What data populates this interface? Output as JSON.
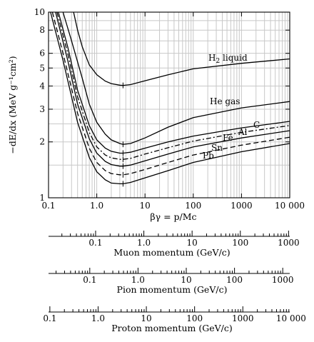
{
  "chart_data": {
    "type": "line",
    "xlabel": "βγ = p/Mc",
    "ylabel": "−dE/dx (MeV g⁻¹cm²)",
    "x_scale": "log",
    "y_scale": "log",
    "xlim": [
      0.1,
      10000
    ],
    "ylim": [
      1,
      10
    ],
    "grid": true,
    "x_ticks": [
      "0.1",
      "1.0",
      "10",
      "100",
      "1000",
      "10 000"
    ],
    "y_ticks": [
      "1",
      "2",
      "3",
      "4",
      "5",
      "6",
      "8",
      "10"
    ],
    "series": [
      {
        "name": "H2 liquid",
        "label": "H",
        "sub": "2",
        "label_rest": " liquid",
        "dash": "",
        "min_x": 3.5,
        "points": [
          [
            0.33,
            10.0
          ],
          [
            0.4,
            8.0
          ],
          [
            0.5,
            6.5
          ],
          [
            0.7,
            5.2
          ],
          [
            1.0,
            4.6
          ],
          [
            1.5,
            4.25
          ],
          [
            2.0,
            4.12
          ],
          [
            3.0,
            4.04
          ],
          [
            3.5,
            4.03
          ],
          [
            5.0,
            4.07
          ],
          [
            10,
            4.27
          ],
          [
            30,
            4.6
          ],
          [
            100,
            4.95
          ],
          [
            1000,
            5.3
          ],
          [
            10000,
            5.6
          ]
        ]
      },
      {
        "name": "He gas",
        "label": "He gas",
        "dash": "",
        "min_x": 3.5,
        "points": [
          [
            0.2,
            10.0
          ],
          [
            0.3,
            7.0
          ],
          [
            0.5,
            4.4
          ],
          [
            0.7,
            3.2
          ],
          [
            1.0,
            2.55
          ],
          [
            1.5,
            2.2
          ],
          [
            2.0,
            2.05
          ],
          [
            3.0,
            1.96
          ],
          [
            3.5,
            1.94
          ],
          [
            5.0,
            1.96
          ],
          [
            10,
            2.1
          ],
          [
            30,
            2.4
          ],
          [
            100,
            2.7
          ],
          [
            1000,
            3.05
          ],
          [
            10000,
            3.3
          ]
        ]
      },
      {
        "name": "C",
        "label": "C",
        "dash": "",
        "min_x": 3.5,
        "points": [
          [
            0.16,
            10.0
          ],
          [
            0.25,
            6.5
          ],
          [
            0.4,
            3.8
          ],
          [
            0.7,
            2.45
          ],
          [
            1.0,
            2.05
          ],
          [
            1.5,
            1.85
          ],
          [
            2.0,
            1.78
          ],
          [
            3.0,
            1.74
          ],
          [
            3.5,
            1.74
          ],
          [
            5.0,
            1.76
          ],
          [
            10,
            1.85
          ],
          [
            30,
            2.0
          ],
          [
            100,
            2.15
          ],
          [
            1000,
            2.38
          ],
          [
            10000,
            2.58
          ]
        ]
      },
      {
        "name": "Al",
        "label": "Al",
        "dash": "7 3 2 3",
        "min_x": 3.5,
        "points": [
          [
            0.15,
            10.0
          ],
          [
            0.25,
            6.0
          ],
          [
            0.4,
            3.5
          ],
          [
            0.7,
            2.25
          ],
          [
            1.0,
            1.88
          ],
          [
            1.5,
            1.7
          ],
          [
            2.0,
            1.64
          ],
          [
            3.0,
            1.61
          ],
          [
            3.5,
            1.61
          ],
          [
            5.0,
            1.63
          ],
          [
            10,
            1.72
          ],
          [
            30,
            1.86
          ],
          [
            100,
            2.02
          ],
          [
            1000,
            2.25
          ],
          [
            10000,
            2.45
          ]
        ]
      },
      {
        "name": "Fe",
        "label": "Fe",
        "dash": "",
        "min_x": 3.5,
        "points": [
          [
            0.14,
            10.0
          ],
          [
            0.25,
            5.5
          ],
          [
            0.4,
            3.2
          ],
          [
            0.7,
            2.08
          ],
          [
            1.0,
            1.74
          ],
          [
            1.5,
            1.57
          ],
          [
            2.0,
            1.51
          ],
          [
            3.0,
            1.48
          ],
          [
            3.5,
            1.48
          ],
          [
            5.0,
            1.5
          ],
          [
            10,
            1.58
          ],
          [
            30,
            1.72
          ],
          [
            100,
            1.88
          ],
          [
            1000,
            2.1
          ],
          [
            10000,
            2.3
          ]
        ]
      },
      {
        "name": "Sn",
        "label": "Sn",
        "dash": "7 4",
        "min_x": 3.5,
        "points": [
          [
            0.12,
            10.0
          ],
          [
            0.2,
            6.0
          ],
          [
            0.4,
            2.85
          ],
          [
            0.7,
            1.85
          ],
          [
            1.0,
            1.55
          ],
          [
            1.5,
            1.4
          ],
          [
            2.0,
            1.35
          ],
          [
            3.0,
            1.33
          ],
          [
            3.5,
            1.33
          ],
          [
            5.0,
            1.35
          ],
          [
            10,
            1.42
          ],
          [
            30,
            1.55
          ],
          [
            100,
            1.7
          ],
          [
            1000,
            1.92
          ],
          [
            10000,
            2.12
          ]
        ]
      },
      {
        "name": "Pb",
        "label": "Pb",
        "dash": "",
        "min_x": 3.5,
        "points": [
          [
            0.11,
            10.0
          ],
          [
            0.2,
            5.5
          ],
          [
            0.4,
            2.55
          ],
          [
            0.7,
            1.65
          ],
          [
            1.0,
            1.38
          ],
          [
            1.5,
            1.25
          ],
          [
            2.0,
            1.2
          ],
          [
            3.0,
            1.19
          ],
          [
            3.5,
            1.19
          ],
          [
            5.0,
            1.21
          ],
          [
            10,
            1.28
          ],
          [
            30,
            1.4
          ],
          [
            100,
            1.55
          ],
          [
            1000,
            1.77
          ],
          [
            10000,
            1.96
          ]
        ]
      }
    ],
    "momentum_scales": [
      {
        "name": "Muon momentum",
        "title": "Muon momentum (GeV/c)",
        "mass": 0.1057,
        "ticks": [
          "0.1",
          "1.0",
          "10",
          "100",
          "1000"
        ]
      },
      {
        "name": "Pion momentum",
        "title": "Pion momentum (GeV/c)",
        "mass": 0.1396,
        "ticks": [
          "0.1",
          "1.0",
          "10",
          "100",
          "1000"
        ]
      },
      {
        "name": "Proton momentum",
        "title": "Proton momentum (GeV/c)",
        "mass": 0.9383,
        "ticks": [
          "0.1",
          "1.0",
          "10",
          "100",
          "1000",
          "10 000"
        ]
      }
    ]
  }
}
